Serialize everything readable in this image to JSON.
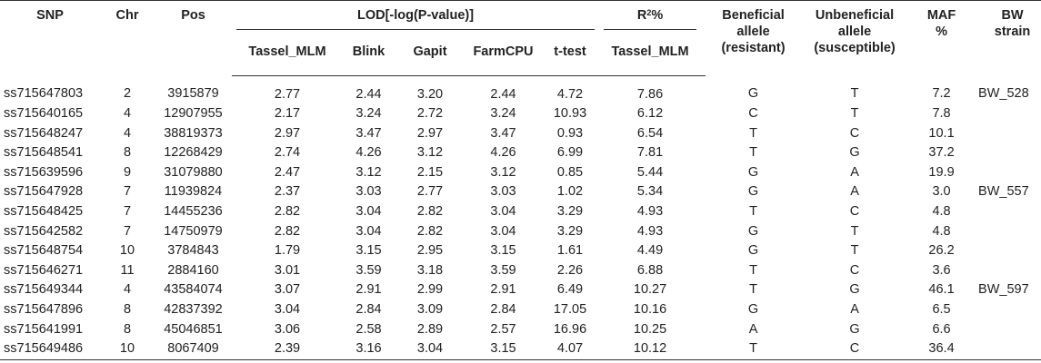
{
  "table": {
    "headers": {
      "snp": "SNP",
      "chr": "Chr",
      "pos": "Pos",
      "lod_group": "LOD[-log(P-value)]",
      "r2_main": "R",
      "r2_sup": "2",
      "r2_suffix": "%",
      "beneficial_line1": "Beneficial",
      "beneficial_line2": "allele",
      "beneficial_line3": "(resistant)",
      "unbeneficial_line1": "Unbeneficial",
      "unbeneficial_line2": "allele",
      "unbeneficial_line3": "(susceptible)",
      "maf_line1": "MAF",
      "maf_line2": "%",
      "bw_line1": "BW",
      "bw_line2": "strain",
      "tassel_mlm": "Tassel_MLM",
      "blink": "Blink",
      "gapit": "Gapit",
      "farmcpu": "FarmCPU",
      "ttest": "t-test",
      "r2_tassel_mlm": "Tassel_MLM"
    },
    "rows": [
      {
        "snp": "ss715647803",
        "chr": "2",
        "pos": "3915879",
        "tassel": "2.77",
        "blink": "2.44",
        "gapit": "3.20",
        "farmcpu": "2.44",
        "ttest": "4.72",
        "r2": "7.86",
        "ben": "G",
        "unben": "T",
        "maf": "7.2",
        "strain": "BW_528"
      },
      {
        "snp": "ss715640165",
        "chr": "4",
        "pos": "12907955",
        "tassel": "2.17",
        "blink": "3.24",
        "gapit": "2.72",
        "farmcpu": "3.24",
        "ttest": "10.93",
        "r2": "6.12",
        "ben": "C",
        "unben": "T",
        "maf": "7.8",
        "strain": ""
      },
      {
        "snp": "ss715648247",
        "chr": "4",
        "pos": "38819373",
        "tassel": "2.97",
        "blink": "3.47",
        "gapit": "2.97",
        "farmcpu": "3.47",
        "ttest": "0.93",
        "r2": "6.54",
        "ben": "T",
        "unben": "C",
        "maf": "10.1",
        "strain": ""
      },
      {
        "snp": "ss715648541",
        "chr": "8",
        "pos": "12268429",
        "tassel": "2.74",
        "blink": "4.26",
        "gapit": "3.12",
        "farmcpu": "4.26",
        "ttest": "6.99",
        "r2": "7.81",
        "ben": "T",
        "unben": "G",
        "maf": "37.2",
        "strain": ""
      },
      {
        "snp": "ss715639596",
        "chr": "9",
        "pos": "31079880",
        "tassel": "2.47",
        "blink": "3.12",
        "gapit": "2.15",
        "farmcpu": "3.12",
        "ttest": "0.85",
        "r2": "5.44",
        "ben": "G",
        "unben": "A",
        "maf": "19.9",
        "strain": ""
      },
      {
        "snp": "ss715647928",
        "chr": "7",
        "pos": "11939824",
        "tassel": "2.37",
        "blink": "3.03",
        "gapit": "2.77",
        "farmcpu": "3.03",
        "ttest": "1.02",
        "r2": "5.34",
        "ben": "G",
        "unben": "A",
        "maf": "3.0",
        "strain": "BW_557"
      },
      {
        "snp": "ss715648425",
        "chr": "7",
        "pos": "14455236",
        "tassel": "2.82",
        "blink": "3.04",
        "gapit": "2.82",
        "farmcpu": "3.04",
        "ttest": "3.29",
        "r2": "4.93",
        "ben": "T",
        "unben": "C",
        "maf": "4.8",
        "strain": ""
      },
      {
        "snp": "ss715642582",
        "chr": "7",
        "pos": "14750979",
        "tassel": "2.82",
        "blink": "3.04",
        "gapit": "2.82",
        "farmcpu": "3.04",
        "ttest": "3.29",
        "r2": "4.93",
        "ben": "G",
        "unben": "T",
        "maf": "4.8",
        "strain": ""
      },
      {
        "snp": "ss715648754",
        "chr": "10",
        "pos": "3784843",
        "tassel": "1.79",
        "blink": "3.15",
        "gapit": "2.95",
        "farmcpu": "3.15",
        "ttest": "1.61",
        "r2": "4.49",
        "ben": "G",
        "unben": "T",
        "maf": "26.2",
        "strain": ""
      },
      {
        "snp": "ss715646271",
        "chr": "11",
        "pos": "2884160",
        "tassel": "3.01",
        "blink": "3.59",
        "gapit": "3.18",
        "farmcpu": "3.59",
        "ttest": "2.26",
        "r2": "6.88",
        "ben": "T",
        "unben": "C",
        "maf": "3.6",
        "strain": ""
      },
      {
        "snp": "ss715649344",
        "chr": "4",
        "pos": "43584074",
        "tassel": "3.07",
        "blink": "2.91",
        "gapit": "2.99",
        "farmcpu": "2.91",
        "ttest": "6.49",
        "r2": "10.27",
        "ben": "T",
        "unben": "G",
        "maf": "46.1",
        "strain": "BW_597"
      },
      {
        "snp": "ss715647896",
        "chr": "8",
        "pos": "42837392",
        "tassel": "3.04",
        "blink": "2.84",
        "gapit": "3.09",
        "farmcpu": "2.84",
        "ttest": "17.05",
        "r2": "10.16",
        "ben": "G",
        "unben": "A",
        "maf": "6.5",
        "strain": ""
      },
      {
        "snp": "ss715641991",
        "chr": "8",
        "pos": "45046851",
        "tassel": "3.06",
        "blink": "2.58",
        "gapit": "2.89",
        "farmcpu": "2.57",
        "ttest": "16.96",
        "r2": "10.25",
        "ben": "A",
        "unben": "G",
        "maf": "6.6",
        "strain": ""
      },
      {
        "snp": "ss715649486",
        "chr": "10",
        "pos": "8067409",
        "tassel": "2.39",
        "blink": "3.16",
        "gapit": "3.04",
        "farmcpu": "3.15",
        "ttest": "4.07",
        "r2": "10.12",
        "ben": "T",
        "unben": "C",
        "maf": "36.4",
        "strain": ""
      }
    ]
  }
}
